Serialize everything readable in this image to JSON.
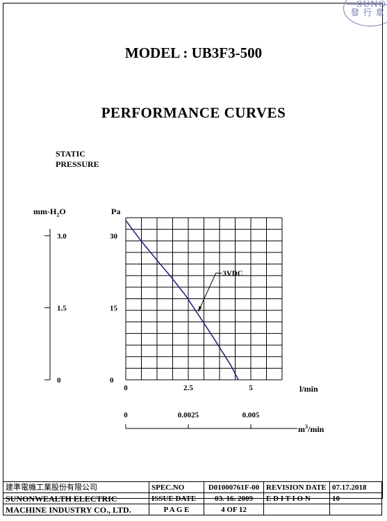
{
  "stamp": {
    "line1": "SUNON",
    "line2": "發行章"
  },
  "header": {
    "model_title": "MODEL : UB3F3-500",
    "section_title": "PERFORMANCE  CURVES"
  },
  "chart_data": {
    "type": "line",
    "ylabel": "STATIC PRESSURE",
    "ylabel_line1": "STATIC",
    "ylabel_line2": "PRESSURE",
    "y_unit_primary": "Pa",
    "y_unit_secondary": "mm-H2O",
    "y_unit_secondary_display": {
      "base": "mm-H",
      "sub": "2",
      "end": "O"
    },
    "y_ticks_pa": [
      "30",
      "15",
      "0"
    ],
    "y_ticks_mmh2o": [
      "3.0",
      "1.5",
      "0"
    ],
    "x_unit_primary": "l/min",
    "x_unit_secondary": "m3/min",
    "x_unit_secondary_display": {
      "base": "m",
      "sup": "3",
      "end": "/min"
    },
    "x_ticks_lmin": [
      "0",
      "2.5",
      "5"
    ],
    "x_ticks_m3min": [
      "0",
      "0.0025",
      "0.005"
    ],
    "xlim": [
      0,
      6.25
    ],
    "ylim": [
      0,
      33.75
    ],
    "grid": true,
    "series": [
      {
        "name": "3VDC",
        "color": "#1f2a7a",
        "x": [
          0,
          0.6,
          1.2,
          1.8,
          2.4,
          3.0,
          3.6,
          4.2,
          4.5
        ],
        "y": [
          33.2,
          29.0,
          25.2,
          21.5,
          17.5,
          12.8,
          8.0,
          3.0,
          0
        ]
      }
    ]
  },
  "footer": {
    "company_cn": "建準電機工業股份有限公司",
    "company_en_1": "SUNONWEALTH  ELECTRIC",
    "company_en_2": "MACHINE  INDUSTRY  CO., LTD.",
    "spec_label": "SPEC.NO",
    "spec_value": "D01000761F-00",
    "revision_label": "REVISION DATE",
    "revision_value": "07.17.2018",
    "issue_label": "ISSUE DATE",
    "issue_value": "03. 16. 2009",
    "edition_label": "E D I T I O N",
    "edition_value": "10",
    "page_label": "P A G E",
    "page_value": "4   OF  12"
  }
}
